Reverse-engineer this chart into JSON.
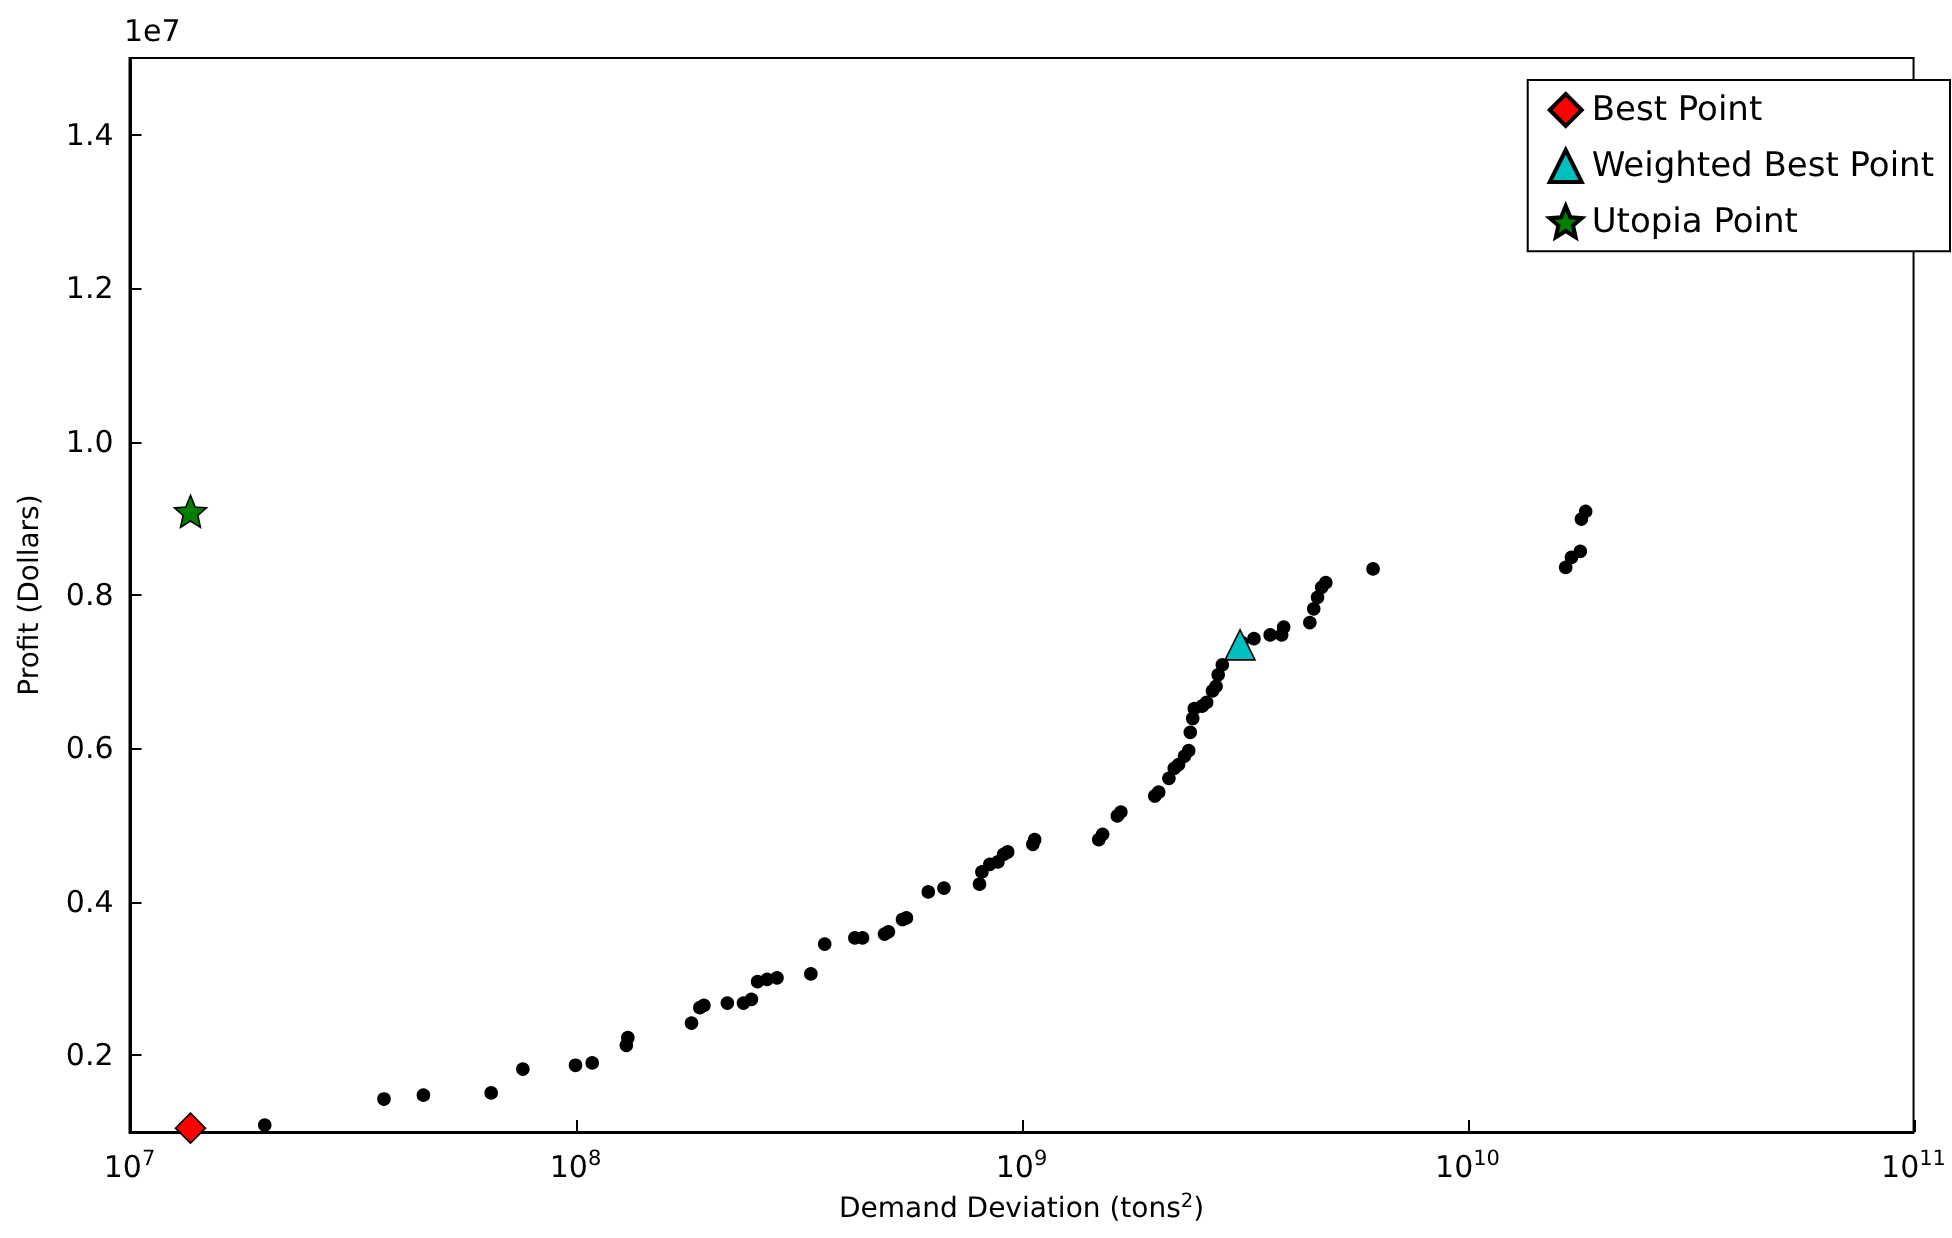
{
  "chart_data": {
    "type": "scatter",
    "xlabel": "Demand Deviation (tons$^{2}$)",
    "ylabel": "Profit (Dollars)",
    "log": "x",
    "xlim": [
      10000000,
      100000000000
    ],
    "xticks": [
      {
        "value": 10000000,
        "label": "10$^{7}$"
      },
      {
        "value": 100000000,
        "label": "10$^{8}$"
      },
      {
        "value": 1000000000,
        "label": "10$^{9}$"
      },
      {
        "value": 10000000000,
        "label": "10$^{10}$"
      },
      {
        "value": 100000000000,
        "label": "10$^{11}$"
      }
    ],
    "ylim": [
      0.1,
      1.5
    ],
    "yticks": [
      0.2,
      0.4,
      0.6,
      0.8,
      {
        "value": 1,
        "label": "1.0"
      },
      1.2,
      1.4
    ],
    "annotations": [
      "1e7"
    ],
    "grid": false,
    "legend": "top right",
    "series": [
      {
        "color": "#000000",
        "marker": "circle",
        "x": [
          20100000.0,
          37200000.0,
          45600000.0,
          64700000.0,
          76200000.0,
          100000000.0,
          109000000.0,
          130000000.0,
          131000000.0,
          182000000.0,
          190000000.0,
          194000000.0,
          219000000.0,
          238000000.0,
          248000000.0,
          256000000.0,
          269000000.0,
          283000000.0,
          337000000.0,
          362000000.0,
          423000000.0,
          440000000.0,
          493000000.0,
          503000000.0,
          541000000.0,
          552000000.0,
          618000000.0,
          670000000.0,
          805000000.0,
          815000000.0,
          849000000.0,
          885000000.0,
          912000000.0,
          931000000.0,
          1060000000.0,
          1070000000.0,
          1490000000.0,
          1520000000.0,
          1640000000.0,
          1670000000.0,
          1990000000.0,
          2030000000.0,
          2140000000.0,
          2200000000.0,
          2250000000.0,
          2320000000.0,
          2370000000.0,
          2390000000.0,
          2420000000.0,
          2440000000.0,
          2540000000.0,
          2600000000.0,
          2680000000.0,
          2730000000.0,
          2760000000.0,
          2820000000.0,
          3120000000.0,
          3320000000.0,
          3610000000.0,
          3870000000.0,
          3830000000.0,
          4430000000.0,
          4520000000.0,
          4610000000.0,
          4710000000.0,
          4810000000.0,
          6140000000.0,
          16600000000.0,
          17100000000.0,
          17900000000.0,
          18000000000.0,
          18400000000.0
        ],
        "values": [
          0.109,
          0.143,
          0.148,
          0.151,
          0.182,
          0.187,
          0.19,
          0.213,
          0.223,
          0.242,
          0.262,
          0.265,
          0.268,
          0.268,
          0.273,
          0.296,
          0.299,
          0.301,
          0.306,
          0.345,
          0.353,
          0.353,
          0.358,
          0.361,
          0.377,
          0.379,
          0.413,
          0.418,
          0.423,
          0.439,
          0.449,
          0.452,
          0.462,
          0.465,
          0.475,
          0.481,
          0.481,
          0.488,
          0.512,
          0.517,
          0.538,
          0.543,
          0.561,
          0.574,
          0.579,
          0.59,
          0.597,
          0.621,
          0.639,
          0.652,
          0.655,
          0.66,
          0.675,
          0.681,
          0.696,
          0.709,
          0.738,
          0.743,
          0.748,
          0.758,
          0.748,
          0.764,
          0.782,
          0.797,
          0.81,
          0.816,
          0.834,
          0.836,
          0.849,
          0.857,
          0.899,
          0.909
        ]
      },
      {
        "name": "Best Point",
        "color": "#ff0000",
        "marker": "diamond",
        "x": [
          13700000.0
        ],
        "values": [
          0.105
        ]
      },
      {
        "name": "Weighted Best Point",
        "color": "#00bfbf",
        "marker": "triangle",
        "x": [
          3090000000.0
        ],
        "values": [
          0.735
        ]
      },
      {
        "name": "Utopia Point",
        "color": "#008000",
        "marker": "star",
        "x": [
          13700000.0
        ],
        "values": [
          0.909
        ]
      }
    ]
  }
}
